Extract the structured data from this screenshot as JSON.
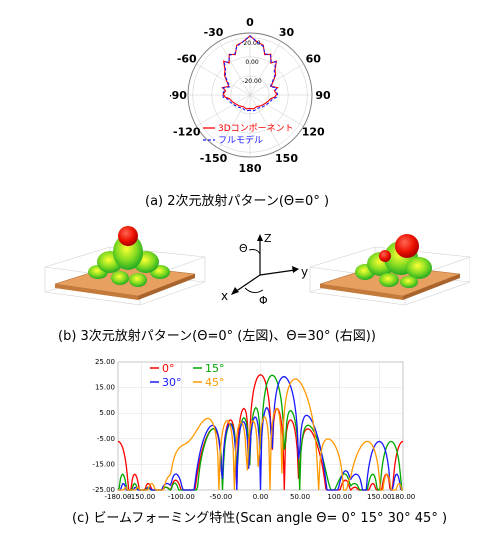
{
  "panel_a": {
    "angle_labels": [
      "0",
      "30",
      "60",
      "90",
      "120",
      "150",
      "180",
      "-150",
      "-120",
      "-90",
      "-60",
      "-30"
    ],
    "radial_labels": [
      "20.00",
      "0.00",
      "-20.00"
    ],
    "legend": [
      "3Dコンポーネント",
      "フルモデル"
    ],
    "caption": "(a) 2次元放射パターン(Θ=0° )"
  },
  "panel_b": {
    "axes_labels": {
      "z": "Z",
      "theta": "Θ",
      "y": "y",
      "x": "x",
      "phi": "Φ"
    },
    "caption": "(b) 3次元放射パターン(Θ=0° (左図)、Θ=30° (右図))"
  },
  "panel_c": {
    "caption": "(c) ビームフォーミング特性(Scan angle Θ= 0°  15°  30°  45° )"
  },
  "colors": {
    "red": "#ff0000",
    "blue": "#1a1aff",
    "green": "#00a800",
    "orange": "#ff9900"
  },
  "chart_data": [
    {
      "type": "line",
      "subtype": "polar",
      "title": "",
      "angle_ticks_deg": [
        0,
        30,
        60,
        90,
        120,
        150,
        180,
        -150,
        -120,
        -90,
        -60,
        -30
      ],
      "radial_ticks": [
        20,
        0,
        -20
      ],
      "series": [
        {
          "name": "3Dコンポーネント",
          "color": "#ff0000",
          "style": "solid",
          "theta": [
            0,
            8,
            15,
            20,
            27,
            33,
            38,
            45,
            52,
            60,
            68,
            75,
            80,
            88,
            95,
            100,
            110,
            120,
            135,
            150,
            165,
            180
          ],
          "r": [
            22,
            16,
            14,
            5,
            8,
            0,
            5,
            -3,
            -6,
            -12,
            -16,
            -10,
            -14,
            -12,
            -14,
            -18,
            -20,
            -22,
            -24,
            -26,
            -25,
            -26
          ]
        },
        {
          "name": "フルモデル",
          "color": "#1a1aff",
          "style": "dashed",
          "theta": [
            0,
            8,
            15,
            20,
            27,
            33,
            38,
            45,
            52,
            60,
            68,
            75,
            80,
            88,
            95,
            100,
            110,
            120,
            135,
            150,
            165,
            180
          ],
          "r": [
            22,
            16,
            13,
            6,
            7,
            1,
            4,
            -4,
            -7,
            -13,
            -17,
            -11,
            -13,
            -11,
            -12,
            -16,
            -18,
            -20,
            -22,
            -24,
            -23,
            -24
          ]
        }
      ]
    },
    {
      "type": "line",
      "title": "",
      "xlabel": "",
      "ylabel": "",
      "xlim": [
        -180,
        180
      ],
      "ylim": [
        -25,
        25
      ],
      "x_ticks": [
        -180,
        -150,
        -100,
        -50,
        0,
        50,
        100,
        150,
        180
      ],
      "y_ticks": [
        25,
        15,
        5,
        -5,
        -15,
        -25
      ],
      "series": [
        {
          "name": "0°",
          "color": "#ff0000",
          "peak": 0
        },
        {
          "name": "15°",
          "color": "#00a800",
          "peak": 15
        },
        {
          "name": "30°",
          "color": "#1a1aff",
          "peak": 30
        },
        {
          "name": "45°",
          "color": "#ff9900",
          "peak": 45
        }
      ],
      "peak_gain": 20
    }
  ]
}
